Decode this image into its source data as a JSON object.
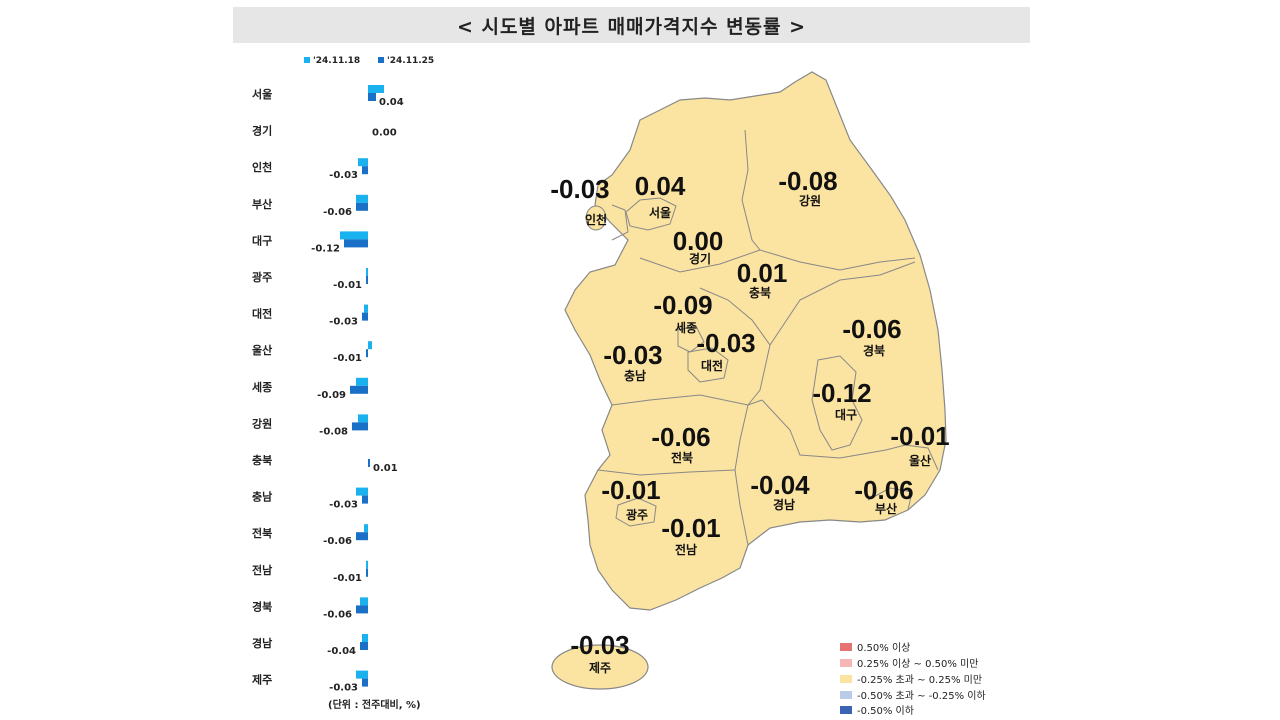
{
  "title": "< 시도별 아파트 매매가격지수 변동률 >",
  "unit_note": "(단위 : 전주대비, %)",
  "map_legend": [
    {
      "label": "0.50% 이상",
      "color": "#e57373"
    },
    {
      "label": "0.25% 이상 ~ 0.50% 미만",
      "color": "#f4b6b6"
    },
    {
      "label": "-0.25% 초과 ~ 0.25% 미만",
      "color": "#fbe3a1"
    },
    {
      "label": "-0.50% 초과 ~ -0.25% 이하",
      "color": "#b9cbe6"
    },
    {
      "label": "-0.50% 이하",
      "color": "#3c64b4"
    }
  ],
  "colors": {
    "prev": "#1ab2ee",
    "curr": "#1a6fc6",
    "map_fill": "#fbe3a1",
    "map_stroke": "#888888"
  },
  "chart_data": {
    "type": "bar",
    "orientation": "horizontal",
    "categories": [
      "서울",
      "경기",
      "인천",
      "부산",
      "대구",
      "광주",
      "대전",
      "울산",
      "세종",
      "강원",
      "충북",
      "충남",
      "전북",
      "전남",
      "경북",
      "경남",
      "제주"
    ],
    "series": [
      {
        "name": "'24.11.18",
        "values": [
          0.08,
          0.0,
          -0.05,
          -0.06,
          -0.14,
          -0.01,
          -0.02,
          0.02,
          -0.06,
          -0.05,
          0.0,
          -0.06,
          -0.02,
          -0.01,
          -0.04,
          -0.03,
          -0.06
        ]
      },
      {
        "name": "'24.11.25",
        "values": [
          0.04,
          0.0,
          -0.03,
          -0.06,
          -0.12,
          -0.01,
          -0.03,
          -0.01,
          -0.09,
          -0.08,
          0.01,
          -0.03,
          -0.06,
          -0.01,
          -0.06,
          -0.04,
          -0.03
        ]
      }
    ],
    "value_labels": [
      "0.04",
      "0.00",
      "-0.03",
      "-0.06",
      "-0.12",
      "-0.01",
      "-0.03",
      "-0.01",
      "-0.09",
      "-0.08",
      "0.01",
      "-0.03",
      "-0.06",
      "-0.01",
      "-0.06",
      "-0.04",
      "-0.03"
    ],
    "legend_position": "top"
  },
  "map": {
    "regions": [
      {
        "id": "seoul",
        "name": "서울",
        "value": "0.04"
      },
      {
        "id": "incheon",
        "name": "인천",
        "value": "-0.03"
      },
      {
        "id": "gyeonggi",
        "name": "경기",
        "value": "0.00"
      },
      {
        "id": "gangwon",
        "name": "강원",
        "value": "-0.08"
      },
      {
        "id": "chungbuk",
        "name": "충북",
        "value": "0.01"
      },
      {
        "id": "sejong",
        "name": "세종",
        "value": "-0.09"
      },
      {
        "id": "chungnam",
        "name": "충남",
        "value": "-0.03"
      },
      {
        "id": "daejeon",
        "name": "대전",
        "value": "-0.03"
      },
      {
        "id": "gyeongbuk",
        "name": "경북",
        "value": "-0.06"
      },
      {
        "id": "daegu",
        "name": "대구",
        "value": "-0.12"
      },
      {
        "id": "ulsan",
        "name": "울산",
        "value": "-0.01"
      },
      {
        "id": "jeonbuk",
        "name": "전북",
        "value": "-0.06"
      },
      {
        "id": "gwangju",
        "name": "광주",
        "value": "-0.01"
      },
      {
        "id": "gyeongnam",
        "name": "경남",
        "value": "-0.04"
      },
      {
        "id": "busan",
        "name": "부산",
        "value": "-0.06"
      },
      {
        "id": "jeonnam",
        "name": "전남",
        "value": "-0.01"
      },
      {
        "id": "jeju",
        "name": "제주",
        "value": "-0.03"
      }
    ]
  }
}
